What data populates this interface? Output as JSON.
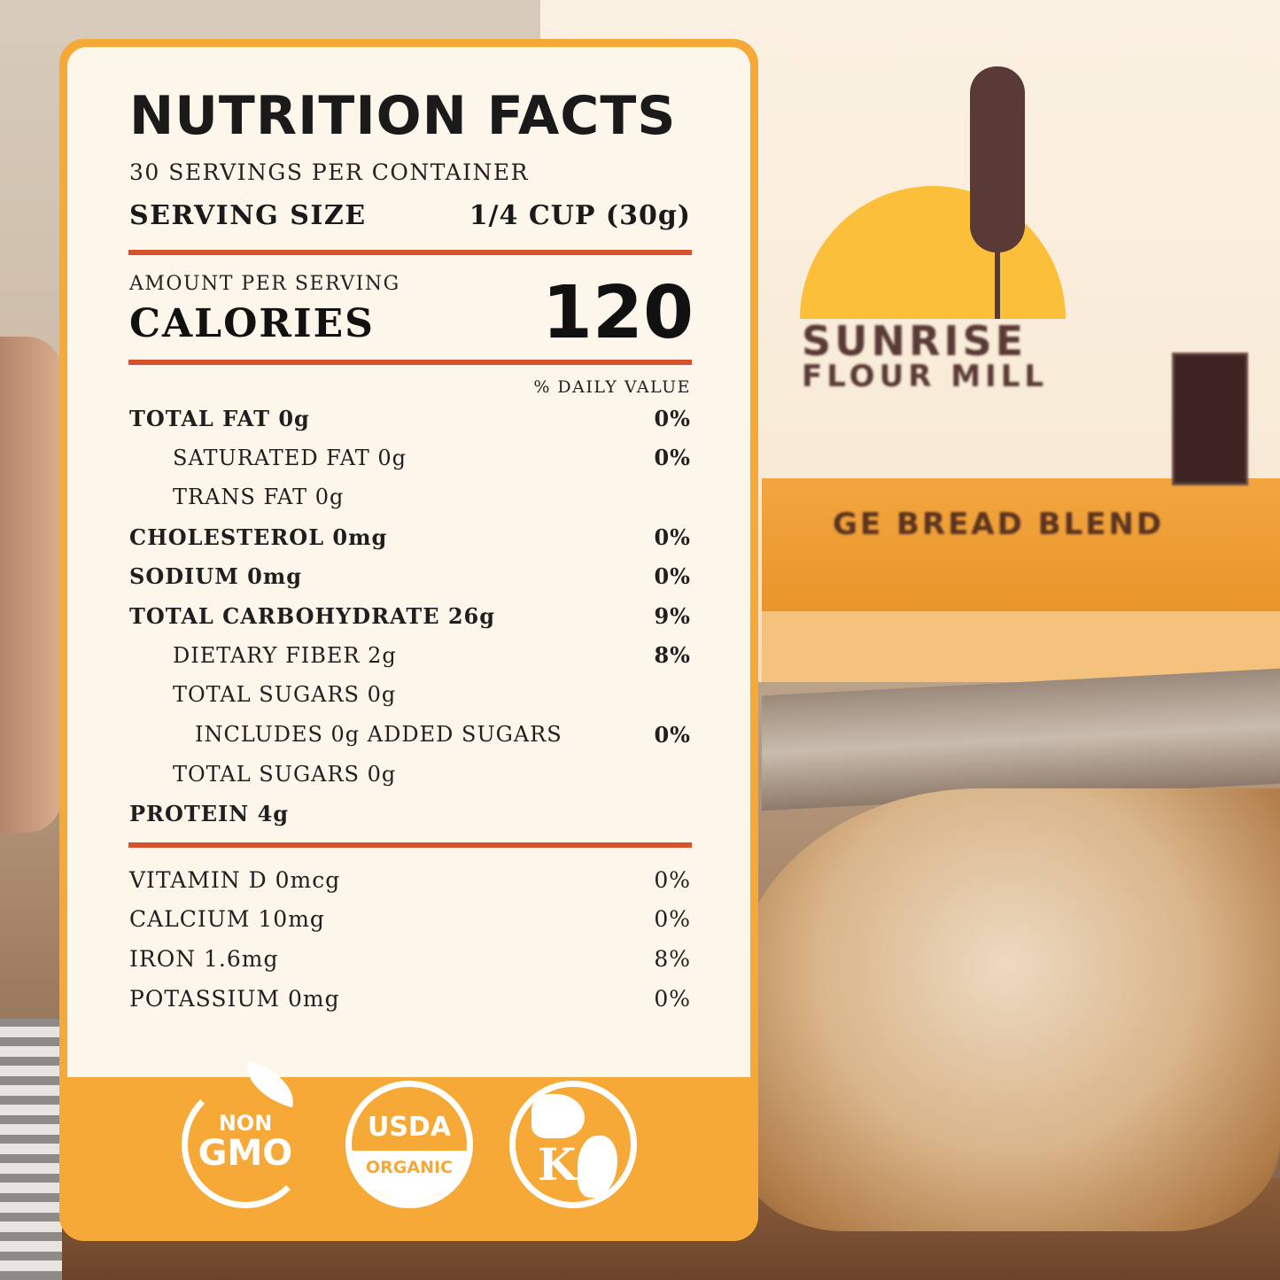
{
  "label": {
    "title": "NUTRITION FACTS",
    "servings": "30 SERVINGS PER CONTAINER",
    "serving_size_label": "SERVING SIZE",
    "serving_size_value": "1/4 CUP (30g)",
    "amount_per_serving": "AMOUNT PER SERVING",
    "calories_label": "CALORIES",
    "calories_value": "120",
    "daily_value_header": "% DAILY VALUE",
    "nutrients": [
      {
        "name": "TOTAL FAT 0g",
        "dv": "0%"
      },
      {
        "name": "SATURATED FAT 0g",
        "dv": "0%"
      },
      {
        "name": "TRANS FAT 0g",
        "dv": ""
      },
      {
        "name": "CHOLESTEROL 0mg",
        "dv": "0%"
      },
      {
        "name": "SODIUM 0mg",
        "dv": "0%"
      },
      {
        "name": "TOTAL CARBOHYDRATE 26g",
        "dv": "9%"
      },
      {
        "name": "DIETARY FIBER 2g",
        "dv": "8%"
      },
      {
        "name": "TOTAL SUGARS 0g",
        "dv": ""
      },
      {
        "name": "INCLUDES 0g ADDED SUGARS",
        "dv": "0%"
      },
      {
        "name": "TOTAL SUGARS 0g",
        "dv": ""
      },
      {
        "name": "PROTEIN 4g",
        "dv": ""
      }
    ],
    "vitamins": [
      {
        "name": "VITAMIN D 0mcg",
        "dv": "0%"
      },
      {
        "name": "CALCIUM 10mg",
        "dv": "0%"
      },
      {
        "name": "IRON 1.6mg",
        "dv": "8%"
      },
      {
        "name": "POTASSIUM 0mg",
        "dv": "0%"
      }
    ]
  },
  "badges": {
    "non_gmo": {
      "line1": "NON",
      "line2": "GMO",
      "icon": "leaf-icon"
    },
    "usda": {
      "line1": "USDA",
      "line2": "ORGANIC"
    },
    "kosher": {
      "letter": "K",
      "icon": "globe-icon"
    }
  },
  "product": {
    "brand_line1": "SUNRISE",
    "brand_line2": "FLOUR MILL",
    "blend": "GE BREAD BLEND"
  },
  "colors": {
    "accent": "#f6a936",
    "rule": "#d9502f",
    "panel": "#fdf6ea"
  }
}
